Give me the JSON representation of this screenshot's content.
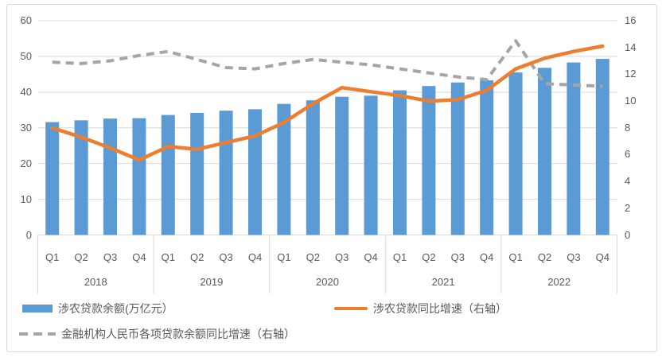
{
  "chart_data": {
    "type": "bar",
    "subtype": "combo-bar-line-dual-axis",
    "title": "",
    "categories_quarters": [
      "Q1",
      "Q2",
      "Q3",
      "Q4",
      "Q1",
      "Q2",
      "Q3",
      "Q4",
      "Q1",
      "Q2",
      "Q3",
      "Q4",
      "Q1",
      "Q2",
      "Q3",
      "Q4",
      "Q1",
      "Q2",
      "Q3",
      "Q4"
    ],
    "year_groups": [
      "2018",
      "2019",
      "2020",
      "2021",
      "2022"
    ],
    "left_axis": {
      "min": 0,
      "max": 60,
      "ticks": [
        "0",
        "10",
        "20",
        "30",
        "40",
        "50",
        "60"
      ]
    },
    "right_axis": {
      "min": 0,
      "max": 16,
      "ticks": [
        "0",
        "2",
        "4",
        "6",
        "8",
        "10",
        "12",
        "14",
        "16"
      ]
    },
    "grid": true,
    "legend_position": "bottom-left",
    "series": [
      {
        "name": "涉农贷款余额(万亿元）",
        "type": "bar",
        "axis": "left",
        "color": "#5B9BD5",
        "values": [
          31.6,
          32.1,
          32.6,
          32.7,
          33.6,
          34.2,
          34.8,
          35.2,
          36.7,
          37.7,
          38.7,
          39.0,
          40.5,
          41.7,
          42.7,
          43.3,
          45.5,
          46.8,
          48.3,
          49.3
        ]
      },
      {
        "name": "涉农贷款同比增速（右轴）",
        "type": "line",
        "axis": "right",
        "color": "#ED7D31",
        "values": [
          8.0,
          7.3,
          6.5,
          5.6,
          6.6,
          6.4,
          6.9,
          7.4,
          8.4,
          9.8,
          11.0,
          10.7,
          10.4,
          10.0,
          10.1,
          10.8,
          12.4,
          13.2,
          13.7,
          14.1
        ]
      },
      {
        "name": "金融机构人民币各项贷款余额同比增速（右轴）",
        "type": "line-dashed",
        "axis": "right",
        "color": "#A5A5A5",
        "values": [
          12.9,
          12.8,
          13.0,
          13.4,
          13.7,
          13.1,
          12.5,
          12.4,
          12.8,
          13.1,
          12.9,
          12.7,
          12.4,
          12.1,
          11.8,
          11.6,
          14.5,
          11.3,
          11.2,
          11.1
        ]
      }
    ],
    "style_colors": {
      "gridline": "#D9D9D9",
      "axis_text": "#595959",
      "frame_border": "#D9D9D9",
      "background": "#FFFFFF"
    }
  }
}
